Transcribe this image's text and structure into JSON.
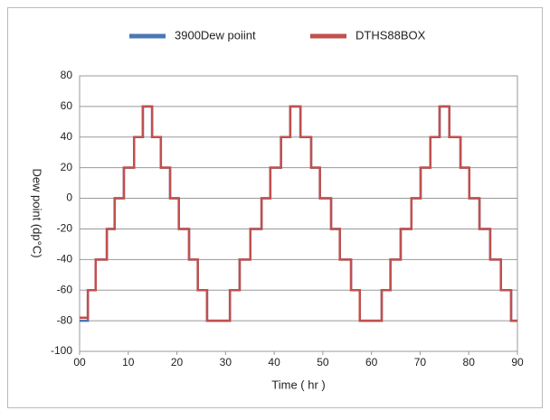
{
  "chart_data": {
    "type": "line",
    "xlabel": "Time ( hr )",
    "ylabel": "Dew point (dp°C)",
    "x": [
      0,
      1.7,
      1.7,
      3.3,
      3.3,
      5.6,
      5.6,
      7.2,
      7.2,
      9.1,
      9.1,
      11.2,
      11.2,
      13.0,
      13.0,
      14.9,
      14.9,
      16.7,
      16.7,
      18.6,
      18.6,
      20.4,
      20.4,
      22.5,
      22.5,
      24.3,
      24.3,
      26.2,
      26.2,
      30.9,
      30.9,
      32.9,
      32.9,
      35.1,
      35.1,
      37.4,
      37.4,
      39.2,
      39.2,
      41.4,
      41.4,
      43.3,
      43.3,
      45.4,
      45.4,
      47.6,
      47.6,
      49.4,
      49.4,
      51.7,
      51.7,
      53.5,
      53.5,
      55.8,
      55.8,
      57.6,
      57.6,
      62.1,
      62.1,
      63.9,
      63.9,
      66.0,
      66.0,
      68.2,
      68.2,
      70.1,
      70.1,
      72.1,
      72.1,
      74.0,
      74.0,
      76.0,
      76.0,
      78.3,
      78.3,
      80.1,
      80.1,
      82.2,
      82.2,
      84.4,
      84.4,
      86.6,
      86.6,
      88.7,
      88.7,
      90
    ],
    "series": [
      {
        "name": "3900Dew poiint",
        "color": "#4a78b5",
        "values": [
          -80,
          -80,
          -60,
          -60,
          -40,
          -40,
          -20,
          -20,
          0,
          0,
          20,
          20,
          40,
          40,
          60,
          60,
          40,
          40,
          20,
          20,
          0,
          0,
          -20,
          -20,
          -40,
          -40,
          -60,
          -60,
          -80,
          -80,
          -60,
          -60,
          -40,
          -40,
          -20,
          -20,
          0,
          0,
          20,
          20,
          40,
          40,
          60,
          60,
          40,
          40,
          20,
          20,
          0,
          0,
          -20,
          -20,
          -40,
          -40,
          -60,
          -60,
          -80,
          -80,
          -60,
          -60,
          -40,
          -40,
          -20,
          -20,
          0,
          0,
          20,
          20,
          40,
          40,
          60,
          60,
          40,
          40,
          20,
          20,
          0,
          0,
          -20,
          -20,
          -40,
          -40,
          -60,
          -60,
          -80,
          -80
        ]
      },
      {
        "name": "DTHS88BOX",
        "color": "#c0504d",
        "values": [
          -78,
          -78,
          -60,
          -60,
          -40,
          -40,
          -20,
          -20,
          0,
          0,
          20,
          20,
          40,
          40,
          60,
          60,
          40,
          40,
          20,
          20,
          0,
          0,
          -20,
          -20,
          -40,
          -40,
          -60,
          -60,
          -80,
          -80,
          -60,
          -60,
          -40,
          -40,
          -20,
          -20,
          0,
          0,
          20,
          20,
          40,
          40,
          60,
          60,
          40,
          40,
          20,
          20,
          0,
          0,
          -20,
          -20,
          -40,
          -40,
          -60,
          -60,
          -80,
          -80,
          -60,
          -60,
          -40,
          -40,
          -20,
          -20,
          0,
          0,
          20,
          20,
          40,
          40,
          60,
          60,
          40,
          40,
          20,
          20,
          0,
          0,
          -20,
          -20,
          -40,
          -40,
          -60,
          -60,
          -80,
          -80
        ]
      }
    ],
    "xlim": [
      0,
      90
    ],
    "xticks": [
      {
        "value": 0,
        "label": "00"
      },
      10,
      20,
      30,
      40,
      50,
      60,
      70,
      80,
      90
    ],
    "ylim": [
      -100,
      80
    ],
    "yticks": [
      -100,
      -80,
      -60,
      -40,
      -20,
      0,
      20,
      40,
      60,
      80
    ],
    "grid": true,
    "legend": "top"
  }
}
